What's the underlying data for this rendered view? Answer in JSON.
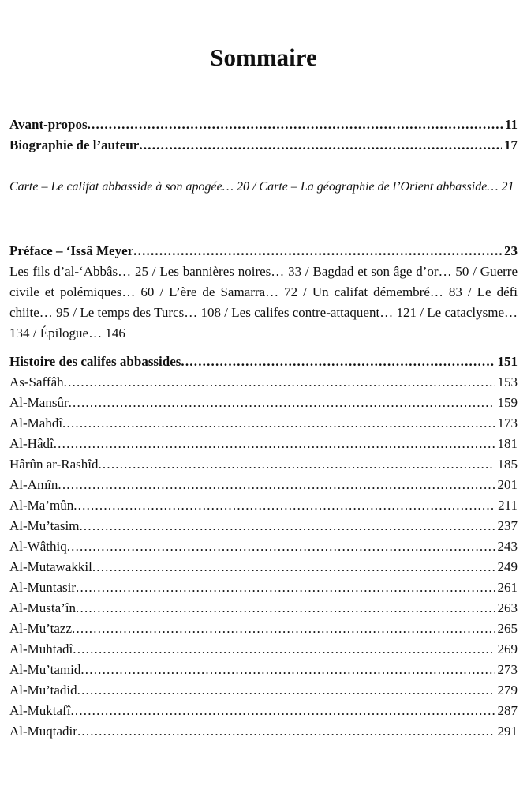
{
  "title": "Sommaire",
  "front": [
    {
      "label": "Avant-propos",
      "page": "11"
    },
    {
      "label": "Biographie de l’auteur",
      "page": "17"
    }
  ],
  "maps_text": "Carte – Le califat abbasside à son apogée… 20 / Carte – La géographie de l’Orient abbasside… 21",
  "preface": {
    "label": "Préface – ‘Issâ Meyer",
    "page": "23"
  },
  "preface_chapters": "Les fils d’al-‘Abbâs… 25 / Les bannières noires… 33 / Bagdad et son âge d’or… 50 / Guerre civile et polémiques… 60 / L’ère de Samarra… 72 / Un califat démembré… 83 / Le défi chiite… 95 / Le temps des Turcs… 108 / Les califes contre-attaquent… 121 / Le cataclysme… 134 / Épilogue… 146",
  "history": {
    "label": "Histoire des califes abbassides",
    "page": "151"
  },
  "caliphs": [
    {
      "label": "As-Saffâh",
      "page": "153"
    },
    {
      "label": "Al-Mansûr",
      "page": "159"
    },
    {
      "label": "Al-Mahdî",
      "page": "173"
    },
    {
      "label": "Al-Hâdî",
      "page": "181"
    },
    {
      "label": "Hârûn ar-Rashîd",
      "page": "185"
    },
    {
      "label": "Al-Amîn",
      "page": "201"
    },
    {
      "label": "Al-Ma’mûn",
      "page": "211"
    },
    {
      "label": "Al-Mu’tasim",
      "page": "237"
    },
    {
      "label": "Al-Wâthiq",
      "page": "243"
    },
    {
      "label": "Al-Mutawakkil",
      "page": "249"
    },
    {
      "label": "Al-Muntasir",
      "page": "261"
    },
    {
      "label": "Al-Musta’în",
      "page": "263"
    },
    {
      "label": "Al-Mu’tazz",
      "page": "265"
    },
    {
      "label": "Al-Muhtadî",
      "page": "269"
    },
    {
      "label": "Al-Mu’tamid",
      "page": "273"
    },
    {
      "label": "Al-Mu’tadid",
      "page": "279"
    },
    {
      "label": "Al-Muktafî",
      "page": "287"
    },
    {
      "label": "Al-Muqtadir",
      "page": "291"
    }
  ]
}
